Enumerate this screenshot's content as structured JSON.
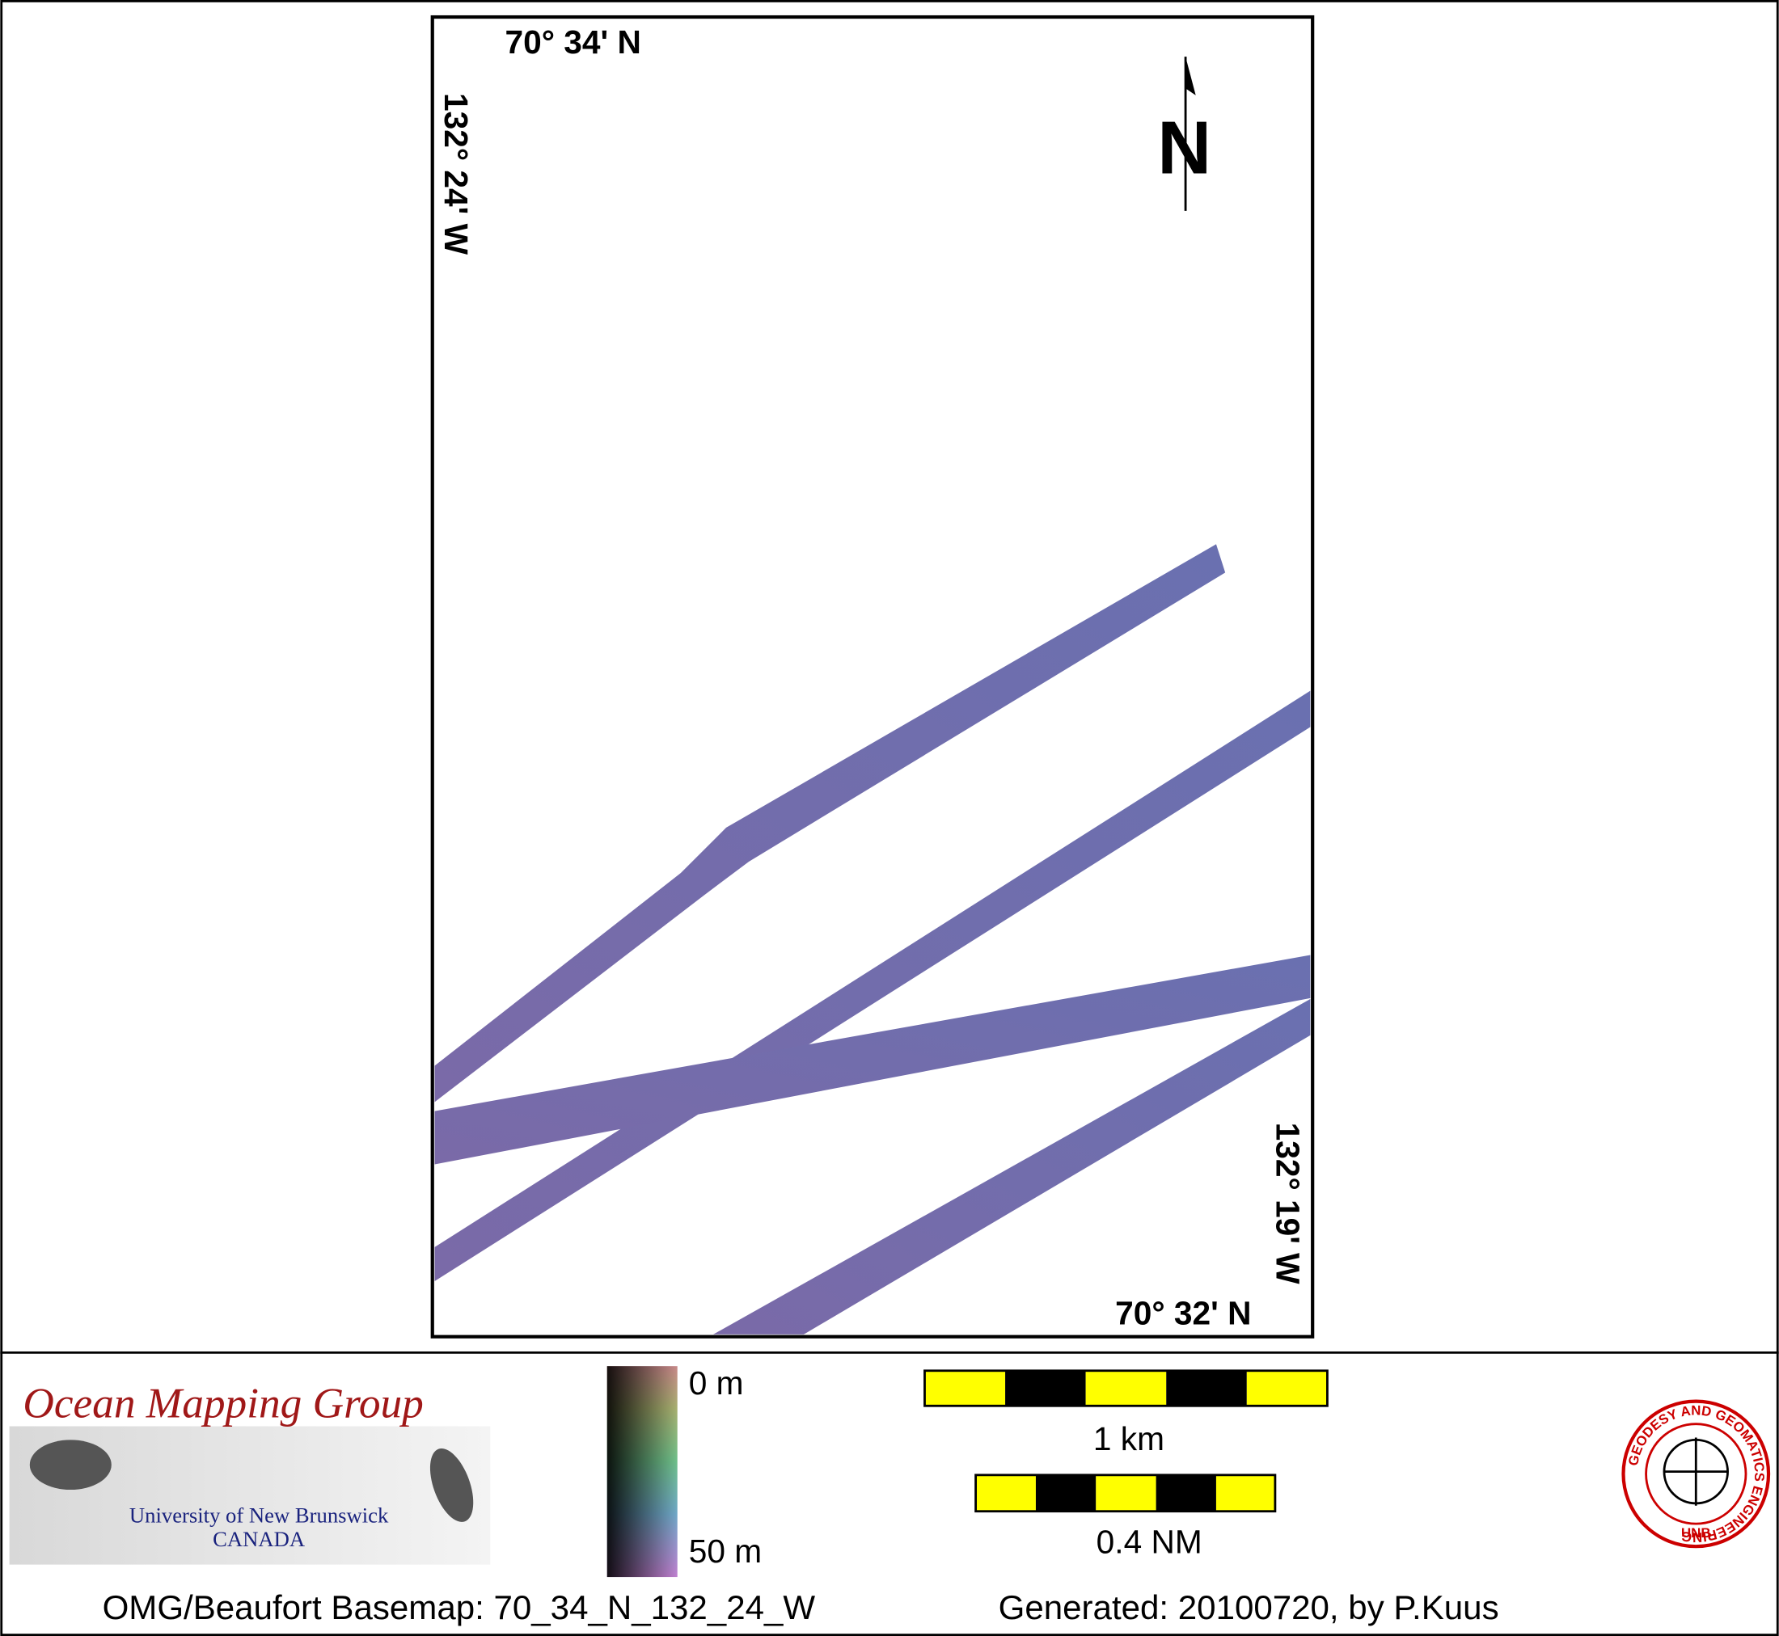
{
  "map": {
    "top_lat": "70° 34' N",
    "left_lon": "132° 24' W",
    "bottom_lat": "70° 32' N",
    "right_lon": "132° 19' W",
    "north": "N"
  },
  "legend": {
    "depth_min": "0 m",
    "depth_max": "50 m"
  },
  "scale_bars": [
    "1 km",
    "0.4 NM"
  ],
  "footer": {
    "basemap": "OMG/Beaufort Basemap: 70_34_N_132_24_W",
    "generated": "Generated: 20100720, by P.Kuus"
  },
  "logo": {
    "title": "Ocean Mapping Group",
    "university": "University of New Brunswick",
    "country": "CANADA"
  },
  "badge": {
    "ring": "GEODESY AND GEOMATICS ENGINEERING",
    "center": "UNB"
  }
}
